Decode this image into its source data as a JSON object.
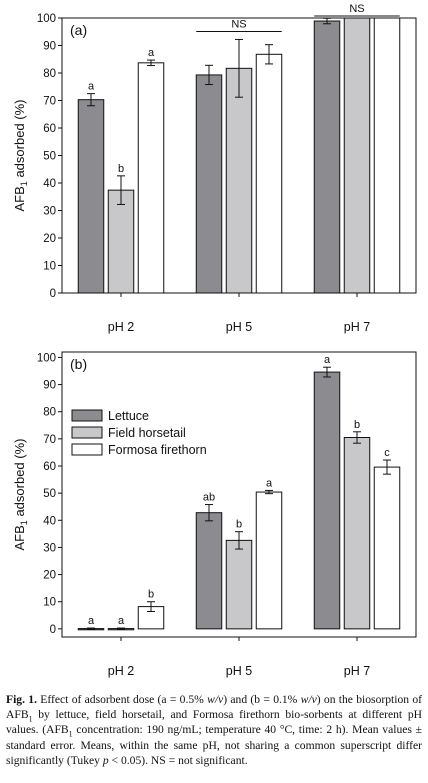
{
  "colors": {
    "lettuce": "#8c8c90",
    "horsetail": "#c8c8ca",
    "firethorn": "#ffffff",
    "axis": "#111111"
  },
  "chart_data": [
    {
      "type": "bar",
      "panel_label": "(a)",
      "ylabel": "AFB1 adsorbed (%)",
      "ylim": [
        0,
        100
      ],
      "yticks": [
        0,
        10,
        20,
        30,
        40,
        50,
        60,
        70,
        80,
        90,
        100
      ],
      "categories": [
        "pH 2",
        "pH 5",
        "pH 7"
      ],
      "series": [
        {
          "name": "Lettuce",
          "values": [
            70.3,
            79.3,
            98.9
          ],
          "errors": [
            2.2,
            3.5,
            1.0
          ],
          "letters": [
            "a",
            "",
            ""
          ]
        },
        {
          "name": "Field horsetail",
          "values": [
            37.4,
            81.7,
            100.0
          ],
          "errors": [
            5.2,
            10.5,
            0.0
          ],
          "letters": [
            "b",
            "",
            ""
          ]
        },
        {
          "name": "Formosa firethorn",
          "values": [
            83.7,
            86.8,
            100.0
          ],
          "errors": [
            1.0,
            3.5,
            0.0
          ],
          "letters": [
            "a",
            "",
            ""
          ]
        }
      ],
      "group_notes": [
        "",
        "NS",
        "NS"
      ]
    },
    {
      "type": "bar",
      "panel_label": "(b)",
      "ylabel": "AFB1 adsorbed (%)",
      "ylim": [
        -3,
        102
      ],
      "yticks": [
        0,
        10,
        20,
        30,
        40,
        50,
        60,
        70,
        80,
        90,
        100
      ],
      "categories": [
        "pH 2",
        "pH 5",
        "pH 7"
      ],
      "legend_position": "upper-left",
      "series": [
        {
          "name": "Lettuce",
          "values": [
            0.1,
            42.8,
            94.6
          ],
          "errors": [
            0.2,
            3.0,
            1.8
          ],
          "letters": [
            "a",
            "ab",
            "a"
          ]
        },
        {
          "name": "Field horsetail",
          "values": [
            0.1,
            32.6,
            70.5
          ],
          "errors": [
            0.2,
            3.2,
            2.1
          ],
          "letters": [
            "a",
            "b",
            "b"
          ]
        },
        {
          "name": "Formosa firethorn",
          "values": [
            8.2,
            50.4,
            59.6
          ],
          "errors": [
            1.8,
            0.6,
            2.6
          ],
          "letters": [
            "b",
            "a",
            "c"
          ]
        }
      ]
    }
  ],
  "caption": {
    "label": "Fig. 1.",
    "parts": [
      " Effect of adsorbent dose (a = 0.5% ",
      "w/v",
      ") and (b = 0.1% ",
      "w/v",
      ") on the biosorption of AFB",
      "1",
      " by lettuce, field horsetail, and Formosa firethorn bio-sorbents at different pH values. (AFB",
      "1",
      " concentration: 190 ng/mL; temperature 40 °C, time: 2 h). Mean values ± standard error. Means, within the same pH, not sharing a common superscript differ significantly (Tukey ",
      "p",
      " < 0.05). NS = not significant."
    ]
  }
}
